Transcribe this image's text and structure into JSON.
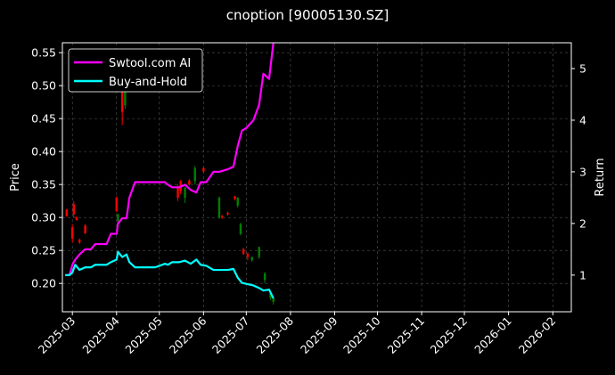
{
  "colors": {
    "background": "#000000",
    "ai_line": "#ff00ff",
    "bh_line": "#00ffff",
    "candle_up": "#ff0000",
    "candle_down": "#008000",
    "grid": "#555555",
    "text": "#ffffff"
  },
  "chart_data": {
    "type": "line",
    "title": "cnoption [90005130.SZ]",
    "ylabel_left": "Price",
    "ylabel_right": "Return",
    "ylim_left": [
      0.157,
      0.565
    ],
    "ylim_right": [
      0.29,
      5.5
    ],
    "xlim": [
      "2025-02-22",
      "2026-02-14"
    ],
    "grid": true,
    "legend_position": "top-left",
    "x_ticks": [
      "2025-03",
      "2025-04",
      "2025-05",
      "2025-06",
      "2025-07",
      "2025-08",
      "2025-09",
      "2025-10",
      "2025-11",
      "2025-12",
      "2026-01",
      "2026-02"
    ],
    "y_ticks_left": [
      "0.20",
      "0.25",
      "0.30",
      "0.35",
      "0.40",
      "0.45",
      "0.50",
      "0.55"
    ],
    "y_ticks_right": [
      "1",
      "2",
      "3",
      "4",
      "5"
    ],
    "series": [
      {
        "name": "Swtool.com AI",
        "axis": "right",
        "points": [
          [
            "2025-02-24",
            1.0
          ],
          [
            "2025-02-27",
            1.0
          ],
          [
            "2025-03-01",
            1.2
          ],
          [
            "2025-03-03",
            1.3
          ],
          [
            "2025-03-06",
            1.4
          ],
          [
            "2025-03-10",
            1.5
          ],
          [
            "2025-03-14",
            1.5
          ],
          [
            "2025-03-17",
            1.6
          ],
          [
            "2025-03-25",
            1.6
          ],
          [
            "2025-03-28",
            1.8
          ],
          [
            "2025-04-01",
            1.8
          ],
          [
            "2025-04-02",
            2.0
          ],
          [
            "2025-04-05",
            2.1
          ],
          [
            "2025-04-08",
            2.1
          ],
          [
            "2025-04-10",
            2.5
          ],
          [
            "2025-04-14",
            2.8
          ],
          [
            "2025-04-17",
            2.8
          ],
          [
            "2025-04-28",
            2.8
          ],
          [
            "2025-05-01",
            2.8
          ],
          [
            "2025-05-05",
            2.8
          ],
          [
            "2025-05-07",
            2.75
          ],
          [
            "2025-05-10",
            2.7
          ],
          [
            "2025-05-15",
            2.7
          ],
          [
            "2025-05-19",
            2.75
          ],
          [
            "2025-05-23",
            2.65
          ],
          [
            "2025-05-27",
            2.6
          ],
          [
            "2025-05-30",
            2.8
          ],
          [
            "2025-06-03",
            2.8
          ],
          [
            "2025-06-08",
            3.0
          ],
          [
            "2025-06-12",
            3.0
          ],
          [
            "2025-06-18",
            3.05
          ],
          [
            "2025-06-22",
            3.1
          ],
          [
            "2025-06-25",
            3.5
          ],
          [
            "2025-06-28",
            3.8
          ],
          [
            "2025-07-01",
            3.85
          ],
          [
            "2025-07-06",
            4.0
          ],
          [
            "2025-07-10",
            4.3
          ],
          [
            "2025-07-13",
            4.9
          ],
          [
            "2025-07-17",
            4.8
          ],
          [
            "2025-07-20",
            5.5
          ]
        ]
      },
      {
        "name": "Buy-and-Hold",
        "axis": "right",
        "points": [
          [
            "2025-02-24",
            1.0
          ],
          [
            "2025-02-27",
            1.0
          ],
          [
            "2025-03-01",
            1.05
          ],
          [
            "2025-03-03",
            1.2
          ],
          [
            "2025-03-06",
            1.1
          ],
          [
            "2025-03-10",
            1.15
          ],
          [
            "2025-03-14",
            1.15
          ],
          [
            "2025-03-17",
            1.2
          ],
          [
            "2025-03-25",
            1.2
          ],
          [
            "2025-03-28",
            1.25
          ],
          [
            "2025-04-01",
            1.3
          ],
          [
            "2025-04-02",
            1.45
          ],
          [
            "2025-04-05",
            1.35
          ],
          [
            "2025-04-08",
            1.4
          ],
          [
            "2025-04-10",
            1.25
          ],
          [
            "2025-04-14",
            1.15
          ],
          [
            "2025-04-17",
            1.15
          ],
          [
            "2025-04-28",
            1.15
          ],
          [
            "2025-05-01",
            1.18
          ],
          [
            "2025-05-05",
            1.22
          ],
          [
            "2025-05-07",
            1.2
          ],
          [
            "2025-05-10",
            1.25
          ],
          [
            "2025-05-15",
            1.25
          ],
          [
            "2025-05-19",
            1.28
          ],
          [
            "2025-05-23",
            1.22
          ],
          [
            "2025-05-27",
            1.3
          ],
          [
            "2025-05-30",
            1.2
          ],
          [
            "2025-06-03",
            1.18
          ],
          [
            "2025-06-08",
            1.1
          ],
          [
            "2025-06-12",
            1.1
          ],
          [
            "2025-06-18",
            1.1
          ],
          [
            "2025-06-22",
            1.12
          ],
          [
            "2025-06-25",
            0.95
          ],
          [
            "2025-06-28",
            0.85
          ],
          [
            "2025-07-01",
            0.83
          ],
          [
            "2025-07-06",
            0.8
          ],
          [
            "2025-07-10",
            0.75
          ],
          [
            "2025-07-13",
            0.7
          ],
          [
            "2025-07-17",
            0.72
          ],
          [
            "2025-07-20",
            0.55
          ]
        ]
      }
    ],
    "candles": [
      {
        "date": "2025-02-25",
        "open": 0.302,
        "close": 0.312,
        "low": 0.301,
        "high": 0.313
      },
      {
        "date": "2025-03-01",
        "open": 0.268,
        "close": 0.285,
        "low": 0.262,
        "high": 0.29
      },
      {
        "date": "2025-03-02",
        "open": 0.305,
        "close": 0.32,
        "low": 0.3,
        "high": 0.325
      },
      {
        "date": "2025-03-04",
        "open": 0.296,
        "close": 0.3,
        "low": 0.295,
        "high": 0.302
      },
      {
        "date": "2025-03-06",
        "open": 0.262,
        "close": 0.266,
        "low": 0.26,
        "high": 0.268
      },
      {
        "date": "2025-03-10",
        "open": 0.276,
        "close": 0.288,
        "low": 0.275,
        "high": 0.29
      },
      {
        "date": "2025-04-01",
        "open": 0.31,
        "close": 0.33,
        "low": 0.308,
        "high": 0.332
      },
      {
        "date": "2025-04-02",
        "open": 0.305,
        "close": 0.295,
        "low": 0.29,
        "high": 0.306
      },
      {
        "date": "2025-04-05",
        "open": 0.46,
        "close": 0.51,
        "low": 0.44,
        "high": 0.53
      },
      {
        "date": "2025-04-07",
        "open": 0.5,
        "close": 0.47,
        "low": 0.465,
        "high": 0.505
      },
      {
        "date": "2025-05-14",
        "open": 0.33,
        "close": 0.345,
        "low": 0.325,
        "high": 0.35
      },
      {
        "date": "2025-05-16",
        "open": 0.34,
        "close": 0.355,
        "low": 0.335,
        "high": 0.357
      },
      {
        "date": "2025-05-19",
        "open": 0.345,
        "close": 0.33,
        "low": 0.322,
        "high": 0.346
      },
      {
        "date": "2025-05-22",
        "open": 0.35,
        "close": 0.356,
        "low": 0.348,
        "high": 0.358
      },
      {
        "date": "2025-05-26",
        "open": 0.375,
        "close": 0.355,
        "low": 0.35,
        "high": 0.378
      },
      {
        "date": "2025-06-01",
        "open": 0.37,
        "close": 0.375,
        "low": 0.368,
        "high": 0.377
      },
      {
        "date": "2025-06-12",
        "open": 0.33,
        "close": 0.3,
        "low": 0.298,
        "high": 0.332
      },
      {
        "date": "2025-06-14",
        "open": 0.3,
        "close": 0.302,
        "low": 0.298,
        "high": 0.304
      },
      {
        "date": "2025-06-18",
        "open": 0.305,
        "close": 0.307,
        "low": 0.303,
        "high": 0.309
      },
      {
        "date": "2025-06-23",
        "open": 0.328,
        "close": 0.332,
        "low": 0.326,
        "high": 0.333
      },
      {
        "date": "2025-06-25",
        "open": 0.33,
        "close": 0.318,
        "low": 0.315,
        "high": 0.331
      },
      {
        "date": "2025-06-27",
        "open": 0.29,
        "close": 0.275,
        "low": 0.273,
        "high": 0.292
      },
      {
        "date": "2025-06-29",
        "open": 0.245,
        "close": 0.252,
        "low": 0.243,
        "high": 0.254
      },
      {
        "date": "2025-07-02",
        "open": 0.24,
        "close": 0.245,
        "low": 0.235,
        "high": 0.247
      },
      {
        "date": "2025-07-05",
        "open": 0.24,
        "close": 0.235,
        "low": 0.233,
        "high": 0.241
      },
      {
        "date": "2025-07-10",
        "open": 0.255,
        "close": 0.24,
        "low": 0.237,
        "high": 0.256
      },
      {
        "date": "2025-07-14",
        "open": 0.215,
        "close": 0.205,
        "low": 0.2,
        "high": 0.217
      },
      {
        "date": "2025-07-18",
        "open": 0.185,
        "close": 0.178,
        "low": 0.175,
        "high": 0.187
      },
      {
        "date": "2025-07-20",
        "open": 0.178,
        "close": 0.172,
        "low": 0.168,
        "high": 0.18
      }
    ]
  }
}
